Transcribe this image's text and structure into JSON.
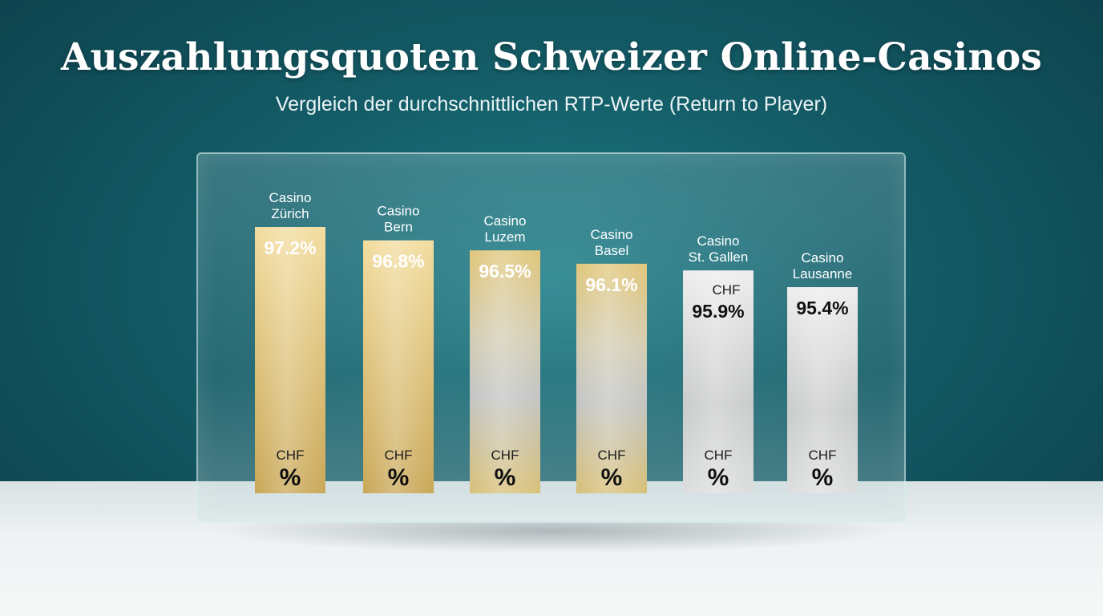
{
  "title": "Auszahlungsquoten Schweizer Online-Casinos",
  "subtitle": "Vergleich der durchschnittlichen RTP-Werte (Return to Player)",
  "chart_data": {
    "type": "bar",
    "title": "Auszahlungsquoten Schweizer Online-Casinos",
    "subtitle": "Vergleich der durchschnittlichen RTP-Werte (Return to Player)",
    "categories": [
      [
        "Casino",
        "Zürich"
      ],
      [
        "Casino",
        "Bern"
      ],
      [
        "Casino",
        "Luzem"
      ],
      [
        "Casino",
        "Basel"
      ],
      [
        "Casino",
        "St. Gallen"
      ],
      [
        "Casino",
        "Lausanne"
      ]
    ],
    "values": [
      97.2,
      96.8,
      96.5,
      96.1,
      95.9,
      95.4
    ],
    "value_labels": [
      "97.2%",
      "96.8%",
      "96.5%",
      "96.1%",
      "95.9%",
      "95.4%"
    ],
    "extra_top_labels": [
      "",
      "",
      "",
      "",
      "CHF",
      ""
    ],
    "bottom_label_top": "CHF",
    "bottom_label_bottom": "%",
    "styles": [
      "gold",
      "gold",
      "gold-silver",
      "gold-silver",
      "silver",
      "silver"
    ],
    "colors": {
      "gold_light": "#efd898",
      "gold_dark": "#c9a757",
      "silver_light": "#e9eaea",
      "silver_dark": "#b9bcbd"
    },
    "grid": false,
    "legend": "none"
  }
}
